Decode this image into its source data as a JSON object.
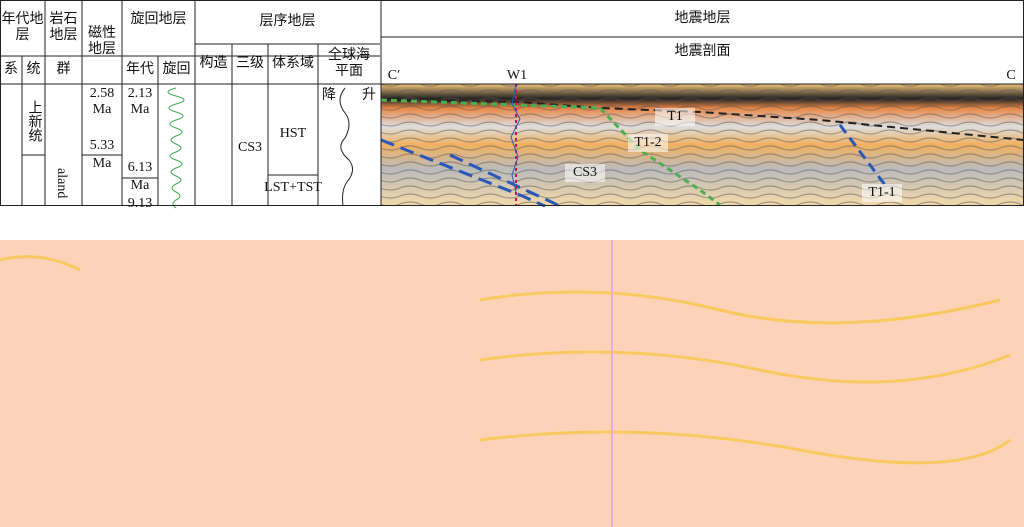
{
  "header": {
    "chrono": "年代地层",
    "litho": "岩石地层",
    "magneto": "磁性地层",
    "cyclo": "旋回地层",
    "sequence": "层序地层",
    "seismic": "地震地层"
  },
  "subheader": {
    "system": "系",
    "series": "统",
    "group": "群",
    "age": "年代",
    "cycle": "旋回",
    "tectonic": "构造",
    "third_order": "三级",
    "systems_tract": "体系域",
    "sea_level": "全球海平面",
    "section": "地震剖面"
  },
  "column": {
    "series": "上新统",
    "group": "aland",
    "magneto": [
      "2.58",
      "Ma",
      "5.33",
      "Ma"
    ],
    "age": [
      "2.13",
      "Ma",
      "6.13",
      "Ma",
      "9.13"
    ],
    "third_order": "CS3",
    "systems_tract": [
      "HST",
      "LST+TST"
    ],
    "sea_level": [
      "降",
      "升"
    ]
  },
  "seismic": {
    "left": "C′",
    "well": "W1",
    "right": "C",
    "horizons": [
      "T1",
      "T1-2",
      "CS3",
      "T1-1"
    ]
  }
}
